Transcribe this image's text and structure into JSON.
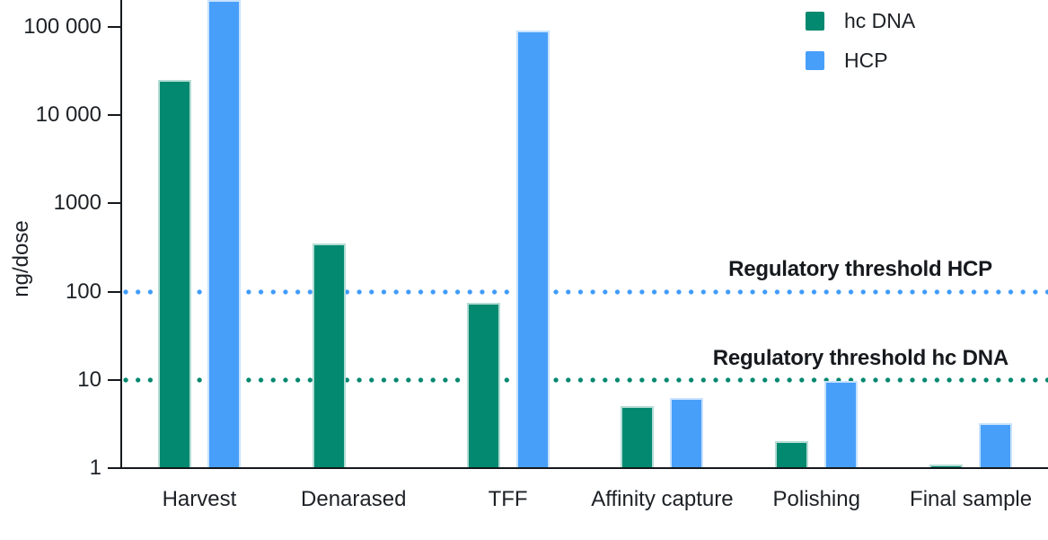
{
  "chart_data": {
    "type": "bar",
    "title": "",
    "ylabel": "ng/dose",
    "yscale": "log",
    "ylim": [
      1,
      200000
    ],
    "grid": false,
    "legend_position": "top-right",
    "yticks": [
      {
        "value": 100000,
        "label": "100 000"
      },
      {
        "value": 10000,
        "label": "10 000"
      },
      {
        "value": 1000,
        "label": "1000"
      },
      {
        "value": 100,
        "label": "100"
      },
      {
        "value": 10,
        "label": "10"
      },
      {
        "value": 1,
        "label": "1"
      }
    ],
    "categories": [
      "Harvest",
      "Denarased",
      "TFF",
      "Affinity capture",
      "Polishing",
      "Final sample"
    ],
    "series": [
      {
        "name": "hc DNA",
        "color": "#02896f",
        "values": [
          25000,
          350,
          75,
          5,
          2,
          1.1
        ]
      },
      {
        "name": "HCP",
        "color": "#479ffa",
        "values": [
          200000,
          null,
          90000,
          6.3,
          9.8,
          3.2
        ]
      }
    ],
    "thresholds": [
      {
        "label": "Regulatory threshold HCP",
        "value": 100,
        "color": "#3f9bfa"
      },
      {
        "label": "Regulatory threshold hc DNA",
        "value": 10,
        "color": "#00876e"
      }
    ]
  }
}
